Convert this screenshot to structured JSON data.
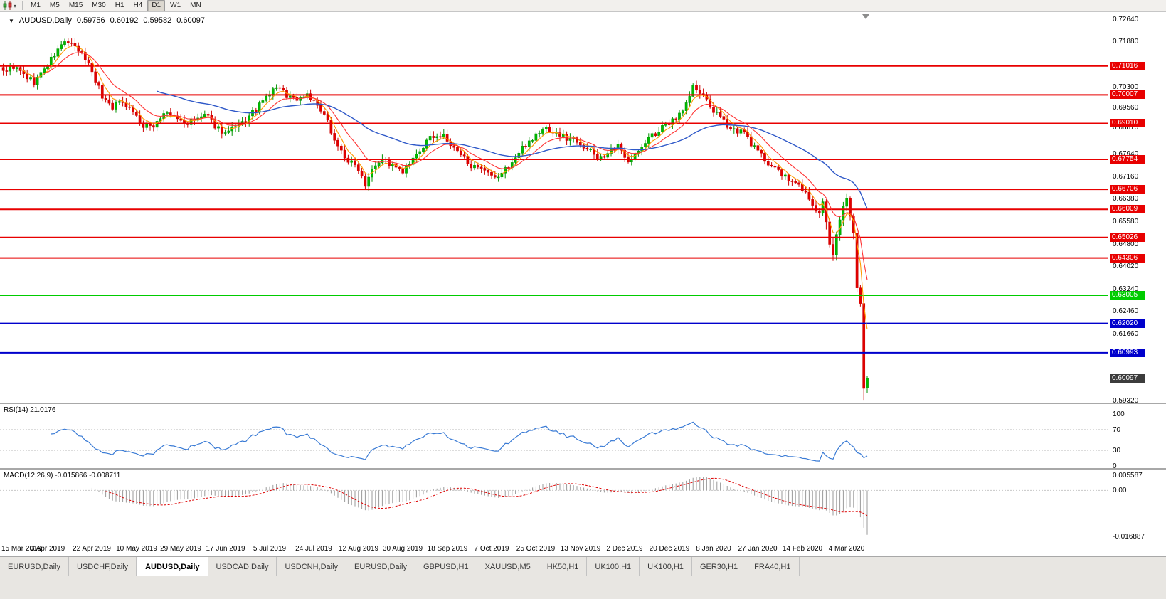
{
  "toolbar": {
    "timeframes": [
      "M1",
      "M5",
      "M15",
      "M30",
      "H1",
      "H4",
      "D1",
      "W1",
      "MN"
    ],
    "active_timeframe": "D1"
  },
  "chart": {
    "title": {
      "symbol": "AUDUSD,Daily",
      "open": "0.59756",
      "high": "0.60192",
      "low": "0.59582",
      "close": "0.60097"
    }
  },
  "chart_data": {
    "type": "candlestick",
    "symbol": "AUDUSD",
    "timeframe": "Daily",
    "last_ohlc": {
      "open": 0.59756,
      "high": 0.60192,
      "low": 0.59582,
      "close": 0.60097
    },
    "price_scale": {
      "min": 0.5925,
      "max": 0.729
    },
    "y_axis_labels": [
      "0.72640",
      "0.71880",
      "0.70300",
      "0.69560",
      "0.68870",
      "0.67940",
      "0.67160",
      "0.66380",
      "0.65580",
      "0.64800",
      "0.64020",
      "0.63240",
      "0.62460",
      "0.61660",
      "0.59320"
    ],
    "x_axis_labels": [
      "15 Mar 2019",
      "3 Apr 2019",
      "22 Apr 2019",
      "10 May 2019",
      "29 May 2019",
      "17 Jun 2019",
      "5 Jul 2019",
      "24 Jul 2019",
      "12 Aug 2019",
      "30 Aug 2019",
      "18 Sep 2019",
      "7 Oct 2019",
      "25 Oct 2019",
      "13 Nov 2019",
      "2 Dec 2019",
      "20 Dec 2019",
      "8 Jan 2020",
      "27 Jan 2020",
      "14 Feb 2020",
      "4 Mar 2020"
    ],
    "bars_per_label": 13,
    "bar_count": 254,
    "horizontal_lines": [
      {
        "price": 0.71016,
        "label": "0.71016",
        "color": "#e80000",
        "type": "resistance"
      },
      {
        "price": 0.70007,
        "label": "0.70007",
        "color": "#e80000",
        "type": "resistance"
      },
      {
        "price": 0.6901,
        "label": "0.69010",
        "color": "#e80000",
        "type": "resistance"
      },
      {
        "price": 0.67754,
        "label": "0.67754",
        "color": "#e80000",
        "type": "resistance"
      },
      {
        "price": 0.66706,
        "label": "0.66706",
        "color": "#e80000",
        "type": "resistance"
      },
      {
        "price": 0.66009,
        "label": "0.66009",
        "color": "#e80000",
        "type": "resistance"
      },
      {
        "price": 0.65026,
        "label": "0.65026",
        "color": "#e80000",
        "type": "resistance"
      },
      {
        "price": 0.64306,
        "label": "0.64306",
        "color": "#e80000",
        "type": "resistance"
      },
      {
        "price": 0.63005,
        "label": "0.63005",
        "color": "#00cc00",
        "type": "support"
      },
      {
        "price": 0.6202,
        "label": "0.62020",
        "color": "#0000cc",
        "type": "support"
      },
      {
        "price": 0.60993,
        "label": "0.60993",
        "color": "#0000cc",
        "type": "support"
      }
    ],
    "current_price": {
      "value": 0.60097,
      "label": "0.60097"
    },
    "moving_averages": [
      {
        "name": "fast-ma",
        "period": 5,
        "color": "#ff9900",
        "width": 1.1
      },
      {
        "name": "mid-ma",
        "period": 12,
        "color": "#ff3333",
        "width": 1.1
      },
      {
        "name": "slow-ma",
        "period": 45,
        "color": "#2e58c8",
        "width": 1.4
      }
    ],
    "close_anchors": [
      [
        0,
        0.7085
      ],
      [
        3,
        0.71
      ],
      [
        6,
        0.707
      ],
      [
        9,
        0.7045
      ],
      [
        12,
        0.709
      ],
      [
        15,
        0.714
      ],
      [
        18,
        0.719
      ],
      [
        21,
        0.7165
      ],
      [
        24,
        0.713
      ],
      [
        26,
        0.7085
      ],
      [
        29,
        0.6995
      ],
      [
        32,
        0.696
      ],
      [
        35,
        0.698
      ],
      [
        38,
        0.6945
      ],
      [
        41,
        0.6885
      ],
      [
        44,
        0.6895
      ],
      [
        47,
        0.6935
      ],
      [
        50,
        0.6925
      ],
      [
        53,
        0.69
      ],
      [
        56,
        0.691
      ],
      [
        59,
        0.693
      ],
      [
        62,
        0.6895
      ],
      [
        65,
        0.6865
      ],
      [
        68,
        0.6885
      ],
      [
        71,
        0.691
      ],
      [
        74,
        0.695
      ],
      [
        77,
        0.699
      ],
      [
        80,
        0.703
      ],
      [
        83,
        0.7
      ],
      [
        86,
        0.6985
      ],
      [
        89,
        0.7005
      ],
      [
        92,
        0.696
      ],
      [
        95,
        0.6905
      ],
      [
        98,
        0.682
      ],
      [
        101,
        0.677
      ],
      [
        104,
        0.6745
      ],
      [
        106,
        0.669
      ],
      [
        108,
        0.675
      ],
      [
        111,
        0.678
      ],
      [
        114,
        0.675
      ],
      [
        117,
        0.673
      ],
      [
        120,
        0.677
      ],
      [
        123,
        0.682
      ],
      [
        126,
        0.686
      ],
      [
        129,
        0.6855
      ],
      [
        132,
        0.681
      ],
      [
        135,
        0.678
      ],
      [
        138,
        0.6745
      ],
      [
        141,
        0.673
      ],
      [
        144,
        0.6705
      ],
      [
        147,
        0.674
      ],
      [
        150,
        0.678
      ],
      [
        153,
        0.683
      ],
      [
        156,
        0.686
      ],
      [
        159,
        0.6885
      ],
      [
        162,
        0.6865
      ],
      [
        165,
        0.685
      ],
      [
        168,
        0.6845
      ],
      [
        171,
        0.681
      ],
      [
        174,
        0.6785
      ],
      [
        177,
        0.679
      ],
      [
        180,
        0.682
      ],
      [
        183,
        0.6775
      ],
      [
        186,
        0.68
      ],
      [
        189,
        0.685
      ],
      [
        192,
        0.6875
      ],
      [
        195,
        0.69
      ],
      [
        198,
        0.6935
      ],
      [
        200,
        0.697
      ],
      [
        202,
        0.703
      ],
      [
        204,
        0.7005
      ],
      [
        206,
        0.698
      ],
      [
        208,
        0.6945
      ],
      [
        211,
        0.6905
      ],
      [
        214,
        0.688
      ],
      [
        217,
        0.6865
      ],
      [
        220,
        0.6815
      ],
      [
        223,
        0.6775
      ],
      [
        226,
        0.6745
      ],
      [
        229,
        0.671
      ],
      [
        232,
        0.669
      ],
      [
        234,
        0.6675
      ],
      [
        236,
        0.6635
      ],
      [
        238,
        0.6595
      ],
      [
        239,
        0.6585
      ],
      [
        240,
        0.6625
      ],
      [
        241,
        0.6555
      ],
      [
        242,
        0.6475
      ],
      [
        243,
        0.644
      ],
      [
        244,
        0.6515
      ],
      [
        245,
        0.6565
      ],
      [
        246,
        0.6615
      ],
      [
        247,
        0.664
      ],
      [
        248,
        0.6575
      ],
      [
        249,
        0.6515
      ],
      [
        250,
        0.633
      ],
      [
        251,
        0.627
      ],
      [
        252,
        0.5976
      ],
      [
        253,
        0.60097
      ]
    ],
    "indicators": {
      "rsi": {
        "label": "RSI(14) 21.0176",
        "period": 14,
        "value": 21.0176,
        "levels": [
          100,
          70,
          30,
          0
        ],
        "color": "#3a7bd5"
      },
      "macd": {
        "label": "MACD(12,26,9) -0.015866 -0.008711",
        "fast": 12,
        "slow": 26,
        "signal": 9,
        "macd_value": -0.015866,
        "signal_value": -0.008711,
        "axis_labels": [
          "0.005587",
          "0.00",
          "-0.016887"
        ],
        "scale": {
          "min": -0.016887,
          "max": 0.005587
        }
      }
    }
  },
  "tabs": {
    "items": [
      "EURUSD,Daily",
      "USDCHF,Daily",
      "AUDUSD,Daily",
      "USDCAD,Daily",
      "USDCNH,Daily",
      "EURUSD,Daily",
      "GBPUSD,H1",
      "XAUUSD,M5",
      "HK50,H1",
      "UK100,H1",
      "UK100,H1",
      "GER30,H1",
      "FRA40,H1"
    ],
    "active_index": 2
  }
}
